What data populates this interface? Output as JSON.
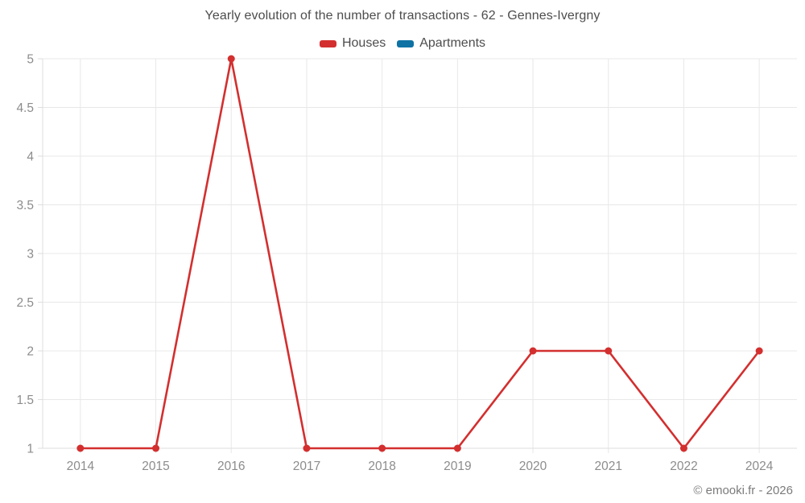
{
  "header": {
    "title": "Yearly evolution of the number of transactions - 62 - Gennes-Ivergny"
  },
  "chart_data": {
    "type": "line",
    "title": "Yearly evolution of the number of transactions - 62 - Gennes-Ivergny",
    "categories": [
      "2014",
      "2015",
      "2016",
      "2017",
      "2018",
      "2019",
      "2020",
      "2021",
      "2022",
      "2024"
    ],
    "series": [
      {
        "name": "Houses",
        "color": "#d32f2f",
        "values": [
          1,
          1,
          5,
          1,
          1,
          1,
          2,
          2,
          1,
          2
        ]
      },
      {
        "name": "Apartments",
        "color": "#0f72a5",
        "values": []
      }
    ],
    "xlabel": "",
    "ylabel": "",
    "ylim": [
      1,
      5
    ],
    "y_ticks": [
      1,
      1.5,
      2,
      2.5,
      3,
      3.5,
      4,
      4.5,
      5
    ],
    "grid": true,
    "legend_position": "top"
  },
  "footer": {
    "text": "© emooki.fr - 2026"
  }
}
